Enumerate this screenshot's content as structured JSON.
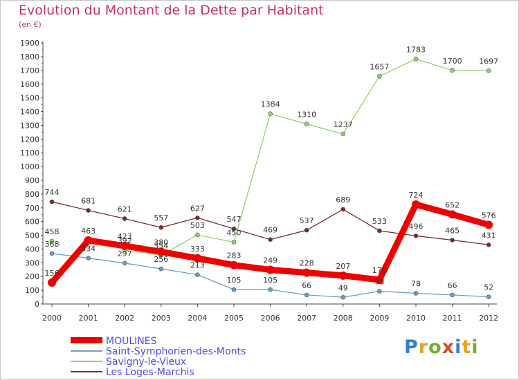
{
  "title": "Evolution du Montant de la Dette par Habitant",
  "subtitle": "(en €)",
  "logo": {
    "letters": [
      "P",
      "r",
      "o",
      "x",
      "i",
      "t",
      "i"
    ],
    "colors": [
      "#2f7fc9",
      "#e8a020",
      "#6cb030",
      "#d84a20",
      "#2f7fc9",
      "#e8a020",
      "#6cb030"
    ]
  },
  "chart_data": {
    "type": "line",
    "x": [
      "2000",
      "2001",
      "2002",
      "2003",
      "2004",
      "2005",
      "2006",
      "2007",
      "2008",
      "2009",
      "2010",
      "2011",
      "2012"
    ],
    "ylim": [
      0,
      1900
    ],
    "yticks": [
      "0",
      "100",
      "200",
      "300",
      "400",
      "500",
      "600",
      "700",
      "800",
      "900",
      "1000",
      "1100",
      "1200",
      "1300",
      "1400",
      "1500",
      "1600",
      "1700",
      "1800",
      "1900"
    ],
    "grid": false,
    "legend_position": "bottom-left",
    "series": [
      {
        "name": "Les Loges-Marchis",
        "color": "#7a2a2a",
        "values": [
          744,
          681,
          621,
          557,
          627,
          547,
          469,
          537,
          689,
          533,
          496,
          465,
          431
        ],
        "labels": [
          "744",
          "681",
          "621",
          "557",
          "627",
          "547",
          "469",
          "537",
          "689",
          "533",
          "496",
          "465",
          "431"
        ]
      },
      {
        "name": "Savigny-le-Vieux",
        "color": "#8ed46a",
        "values": [
          458,
          null,
          392,
          354,
          503,
          450,
          1384,
          1310,
          1237,
          1657,
          1783,
          1700,
          1697
        ],
        "labels": [
          "458",
          "",
          "392",
          "354",
          "503",
          "450",
          "1384",
          "1310",
          "1237",
          "1657",
          "1783",
          "1700",
          "1697"
        ]
      },
      {
        "name": "Saint-Symphorien-des-Monts",
        "color": "#6a9cc8",
        "values": [
          368,
          334,
          297,
          256,
          213,
          105,
          105,
          66,
          49,
          93,
          78,
          66,
          52
        ],
        "labels": [
          "368",
          "334",
          "297",
          "256",
          "213",
          "105",
          "105",
          "66",
          "49",
          "93",
          "78",
          "66",
          "52"
        ]
      },
      {
        "name": "MOULINES",
        "color": "#ee0000",
        "values": [
          156,
          463,
          423,
          380,
          333,
          283,
          249,
          228,
          207,
          176,
          724,
          652,
          576
        ],
        "labels": [
          "156",
          "463",
          "423",
          "380",
          "333",
          "283",
          "249",
          "228",
          "207",
          "176",
          "724",
          "652",
          "576"
        ]
      }
    ],
    "legend": [
      {
        "name": "MOULINES",
        "color": "#ee0000",
        "label_color": "#4a4ae8",
        "bold": true
      },
      {
        "name": "Saint-Symphorien-des-Monts",
        "color": "#6a9cc8",
        "label_color": "#4a4ae8",
        "bold": false
      },
      {
        "name": "Savigny-le-Vieux",
        "color": "#8ed46a",
        "label_color": "#4a4ae8",
        "bold": false
      },
      {
        "name": "Les Loges-Marchis",
        "color": "#7a2a2a",
        "label_color": "#4a4ae8",
        "bold": false
      }
    ]
  }
}
